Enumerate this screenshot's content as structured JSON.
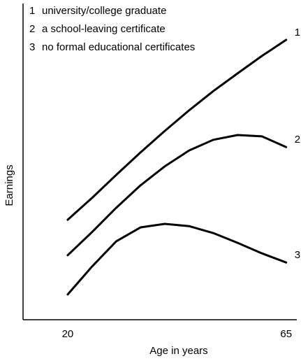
{
  "chart_data": {
    "type": "line",
    "xlabel": "Age in years",
    "ylabel": "Earnings",
    "x": [
      20,
      25,
      30,
      35,
      40,
      45,
      50,
      55,
      60,
      65
    ],
    "series": [
      {
        "label": "1",
        "name": "university/college graduate",
        "color": "#000000",
        "values": [
          31.6,
          38.5,
          45.8,
          52.9,
          59.7,
          66.2,
          72.3,
          77.9,
          83.4,
          88.5
        ]
      },
      {
        "label": "2",
        "name": "a school-leaving certificate",
        "color": "#000000",
        "values": [
          20.4,
          27.7,
          35.4,
          42.5,
          48.5,
          53.5,
          56.9,
          58.4,
          58.0,
          54.6
        ]
      },
      {
        "label": "3",
        "name": "no formal educational certificates",
        "color": "#000000",
        "values": [
          8.0,
          16.8,
          24.8,
          29.2,
          30.3,
          29.6,
          27.4,
          24.3,
          21.0,
          18.1
        ]
      }
    ],
    "xlim": [
      10.8,
      67.2
    ],
    "xticks": [
      20,
      65
    ],
    "ylim": [
      0,
      100
    ]
  }
}
